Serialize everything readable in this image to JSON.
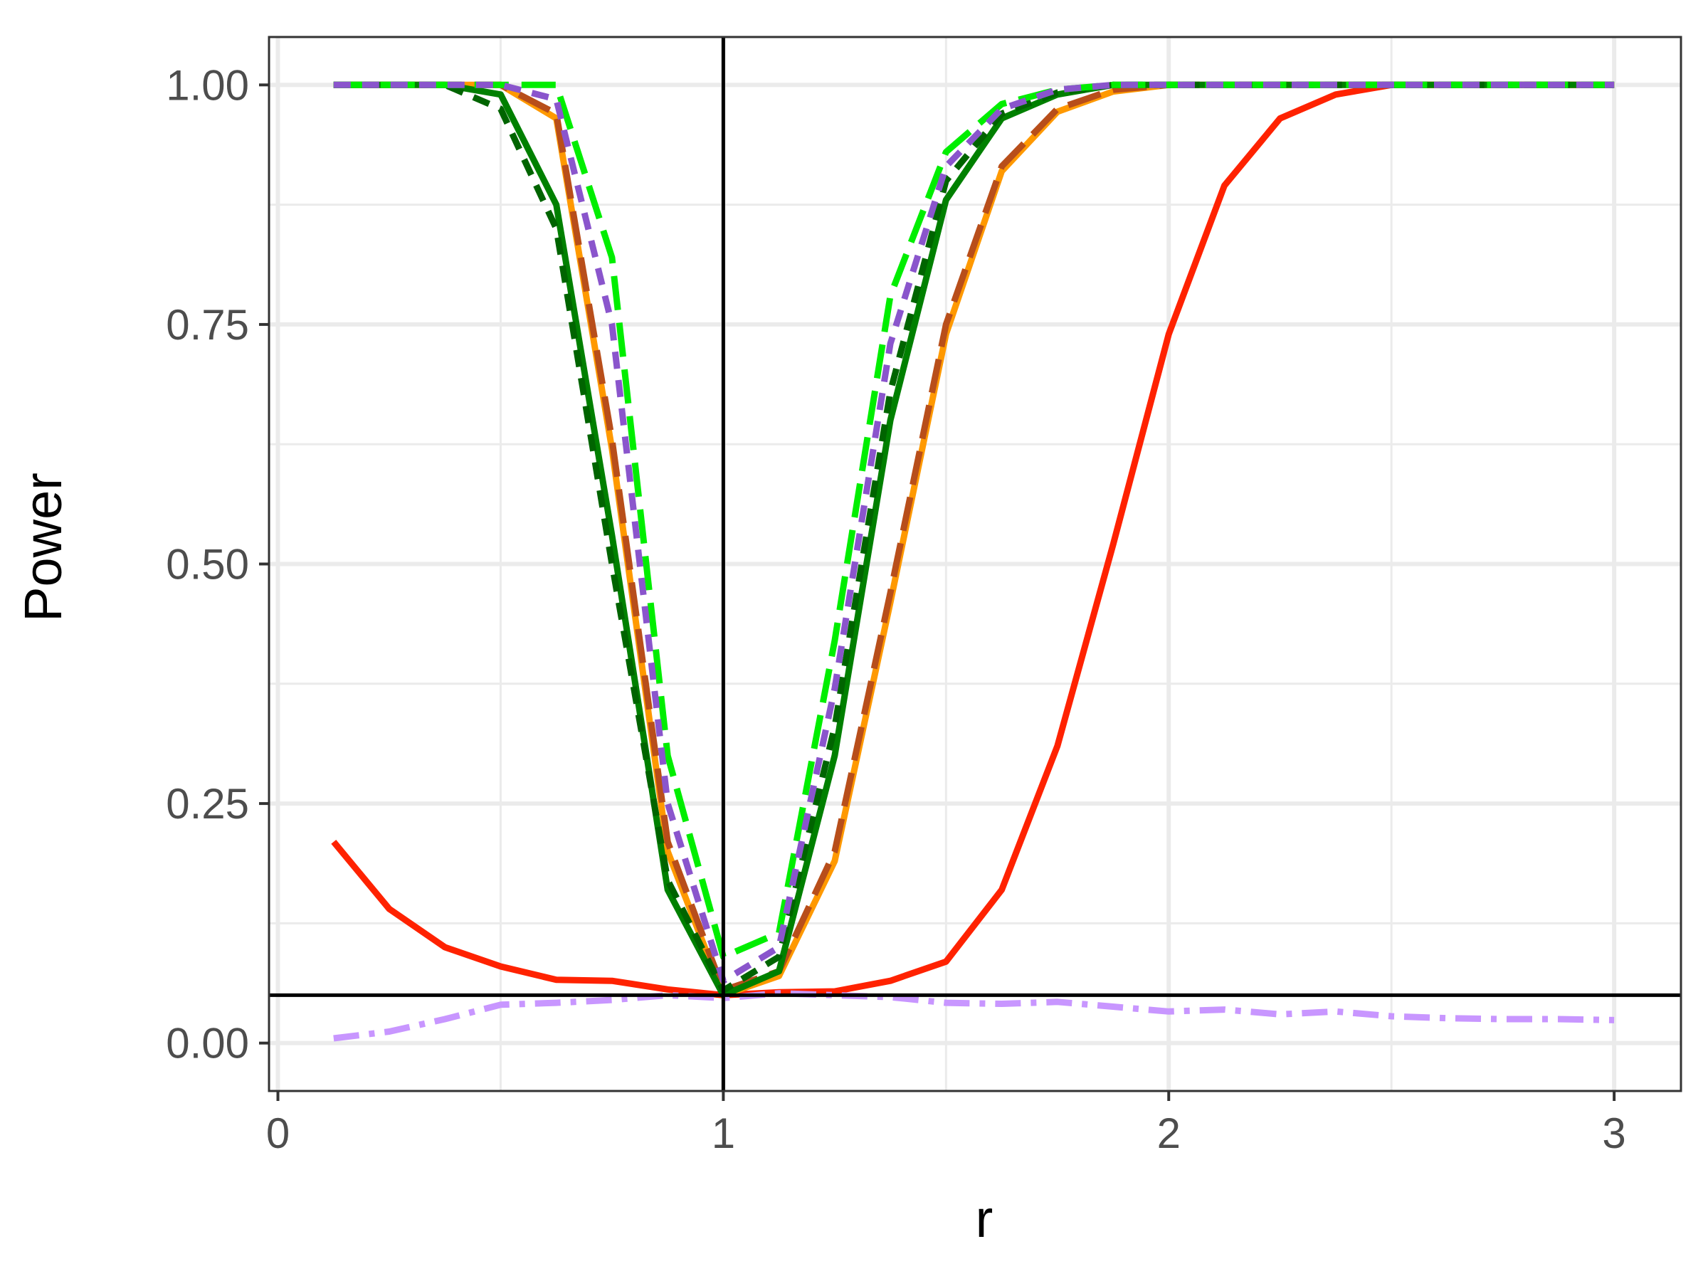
{
  "chart_data": {
    "type": "line",
    "title": "",
    "xlabel": "r",
    "ylabel": "Power",
    "xlim": [
      -0.02,
      3.15
    ],
    "ylim": [
      -0.05,
      1.05
    ],
    "x_ticks": [
      0,
      1,
      2,
      3
    ],
    "x_tick_labels": [
      "0",
      "1",
      "2",
      "3"
    ],
    "y_ticks": [
      0,
      0.25,
      0.5,
      0.75,
      1
    ],
    "y_tick_labels": [
      "0.00",
      "0.25",
      "0.50",
      "0.75",
      "1.00"
    ],
    "grid": true,
    "legend": "none",
    "reference_lines": {
      "vertical_x": 1,
      "horizontal_y": 0.05
    },
    "x": [
      0.125,
      0.25,
      0.375,
      0.5,
      0.625,
      0.75,
      0.875,
      1.0,
      1.125,
      1.25,
      1.375,
      1.5,
      1.625,
      1.75,
      1.875,
      2.0,
      2.125,
      2.25,
      2.375,
      2.5,
      2.625,
      2.75,
      2.875,
      3.0
    ],
    "series": [
      {
        "color": "#FF2200",
        "dash": "solid",
        "values": [
          0.21,
          0.14,
          0.1,
          0.08,
          0.066,
          0.065,
          0.056,
          0.05,
          0.053,
          0.054,
          0.065,
          0.085,
          0.16,
          0.31,
          0.52,
          0.74,
          0.895,
          0.965,
          0.99,
          1.0,
          1.0,
          1.0,
          1.0,
          1.0
        ]
      },
      {
        "color": "#FF9900",
        "dash": "solid",
        "values": [
          1.0,
          1.0,
          1.0,
          1.0,
          0.965,
          0.62,
          0.2,
          0.05,
          0.07,
          0.19,
          0.46,
          0.74,
          0.91,
          0.972,
          0.993,
          1.0,
          1.0,
          1.0,
          1.0,
          1.0,
          1.0,
          1.0,
          1.0,
          1.0
        ]
      },
      {
        "color": "#B84E1A",
        "dash": "longdash",
        "values": [
          1.0,
          1.0,
          1.0,
          1.0,
          0.97,
          0.63,
          0.21,
          0.055,
          0.075,
          0.2,
          0.47,
          0.75,
          0.915,
          0.975,
          0.995,
          1.0,
          1.0,
          1.0,
          1.0,
          1.0,
          1.0,
          1.0,
          1.0,
          1.0
        ]
      },
      {
        "color": "#008000",
        "dash": "solid",
        "values": [
          1.0,
          1.0,
          1.0,
          0.99,
          0.875,
          0.53,
          0.16,
          0.05,
          0.075,
          0.3,
          0.65,
          0.88,
          0.965,
          0.99,
          1.0,
          1.0,
          1.0,
          1.0,
          1.0,
          1.0,
          1.0,
          1.0,
          1.0,
          1.0
        ]
      },
      {
        "color": "#006400",
        "dash": "dashed",
        "values": [
          1.0,
          1.0,
          1.0,
          0.975,
          0.85,
          0.5,
          0.17,
          0.055,
          0.09,
          0.33,
          0.68,
          0.9,
          0.97,
          0.992,
          1.0,
          1.0,
          1.0,
          1.0,
          1.0,
          1.0,
          1.0,
          1.0,
          1.0,
          1.0
        ]
      },
      {
        "color": "#00EE00",
        "dash": "longdash",
        "values": [
          1.0,
          1.0,
          1.0,
          1.0,
          1.0,
          0.82,
          0.3,
          0.09,
          0.115,
          0.42,
          0.78,
          0.93,
          0.98,
          0.995,
          1.0,
          1.0,
          1.0,
          1.0,
          1.0,
          1.0,
          1.0,
          1.0,
          1.0,
          1.0
        ]
      },
      {
        "color": "#8A55CC",
        "dash": "dashed",
        "values": [
          1.0,
          1.0,
          1.0,
          1.0,
          0.985,
          0.75,
          0.25,
          0.065,
          0.1,
          0.37,
          0.73,
          0.915,
          0.975,
          0.995,
          1.0,
          1.0,
          1.0,
          1.0,
          1.0,
          1.0,
          1.0,
          1.0,
          1.0,
          1.0
        ]
      },
      {
        "color": "#C896FF",
        "dash": "dashdot",
        "values": [
          0.005,
          0.012,
          0.025,
          0.04,
          0.042,
          0.045,
          0.05,
          0.047,
          0.052,
          0.05,
          0.048,
          0.042,
          0.041,
          0.043,
          0.038,
          0.033,
          0.035,
          0.03,
          0.033,
          0.028,
          0.026,
          0.025,
          0.025,
          0.024
        ]
      }
    ]
  }
}
